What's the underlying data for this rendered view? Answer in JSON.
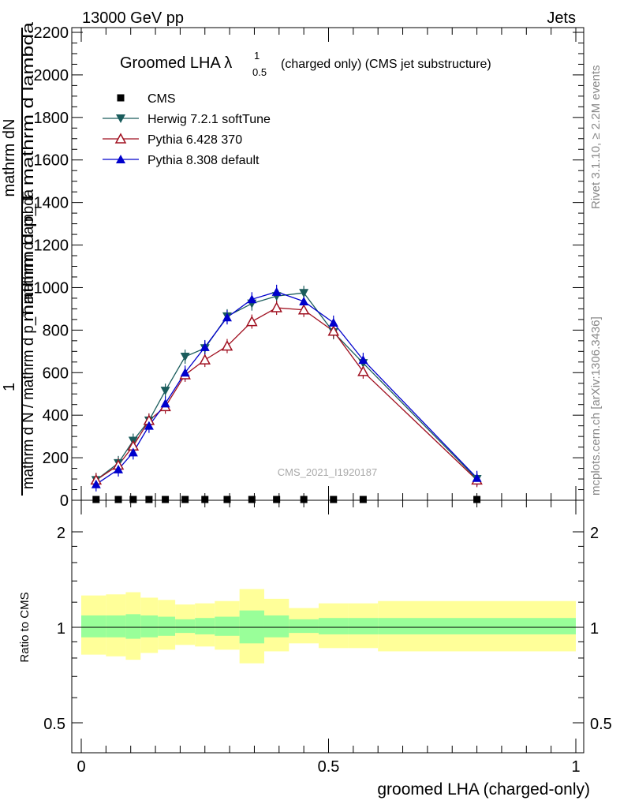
{
  "header": {
    "left": "13000 GeV pp",
    "right": "Jets"
  },
  "side_labels": {
    "top": "Rivet 3.1.10, ≥ 2.2M events",
    "bottom": "mcplots.cern.ch [arXiv:1306.3436]"
  },
  "watermark": "CMS_2021_I1920187",
  "colors": {
    "cms": "#000000",
    "herwig": "#1a5c5c",
    "pythia6": "#a01020",
    "pythia8": "#0000cc",
    "band_inner": "#99ff99",
    "band_outer": "#ffff99"
  },
  "chart_data": [
    {
      "type": "line",
      "title_main": "Groomed LHA",
      "title_symbol": "λ",
      "title_sup": "1",
      "title_sub": "0.5",
      "title_rest": "(charged only) (CMS jet substructure)",
      "ylabel_top": "mathrm dN",
      "ylabel_mid": "mathrm d p_T mathrm d lambda",
      "ylabel_one": "1",
      "ylabel_bottom": "mathrm d N / mathrm d p_T mathrm d lambda",
      "ylim": [
        0,
        2200
      ],
      "yticks": [
        0,
        200,
        400,
        600,
        800,
        1000,
        1200,
        1400,
        1600,
        1800,
        2000,
        2200
      ],
      "xlim": [
        0,
        1
      ],
      "x": [
        0.03,
        0.075,
        0.105,
        0.137,
        0.17,
        0.21,
        0.25,
        0.295,
        0.345,
        0.395,
        0.45,
        0.51,
        0.57,
        0.8
      ],
      "series": [
        {
          "name": "CMS",
          "marker": "square",
          "values": [
            0,
            0,
            0,
            0,
            0,
            0,
            0,
            0,
            0,
            0,
            0,
            0,
            0,
            0
          ]
        },
        {
          "name": "Herwig 7.2.1 softTune",
          "marker": "triangle-down",
          "values": [
            95,
            175,
            280,
            375,
            515,
            675,
            715,
            865,
            925,
            960,
            975,
            790,
            645,
            100
          ]
        },
        {
          "name": "Pythia 6.428 370",
          "marker": "triangle-open",
          "values": [
            95,
            165,
            255,
            375,
            440,
            590,
            660,
            725,
            840,
            905,
            895,
            795,
            605,
            95
          ]
        },
        {
          "name": "Pythia 8.308 default",
          "marker": "triangle-up",
          "values": [
            75,
            145,
            225,
            350,
            455,
            600,
            720,
            860,
            945,
            980,
            935,
            835,
            660,
            105
          ]
        }
      ]
    },
    {
      "type": "area",
      "ylabel": "Ratio to CMS",
      "xlabel": "groomed LHA (charged-only)",
      "ylim": [
        0.4,
        2.4
      ],
      "log_y": true,
      "yticks": [
        0.5,
        1,
        2
      ],
      "xticks": [
        0,
        0.5,
        1
      ],
      "bin_edges": [
        0,
        0.05,
        0.09,
        0.12,
        0.155,
        0.19,
        0.23,
        0.27,
        0.32,
        0.37,
        0.42,
        0.48,
        0.54,
        0.6,
        1.0
      ],
      "band_inner": [
        [
          0.93,
          1.09
        ],
        [
          0.93,
          1.09
        ],
        [
          0.92,
          1.1
        ],
        [
          0.93,
          1.09
        ],
        [
          0.94,
          1.08
        ],
        [
          0.96,
          1.06
        ],
        [
          0.95,
          1.07
        ],
        [
          0.94,
          1.08
        ],
        [
          0.89,
          1.13
        ],
        [
          0.93,
          1.09
        ],
        [
          0.96,
          1.06
        ],
        [
          0.95,
          1.07
        ],
        [
          0.95,
          1.07
        ],
        [
          0.95,
          1.07
        ],
        [
          0.95,
          1.07
        ]
      ],
      "band_outer": [
        [
          0.82,
          1.26
        ],
        [
          0.81,
          1.27
        ],
        [
          0.79,
          1.29
        ],
        [
          0.83,
          1.24
        ],
        [
          0.85,
          1.22
        ],
        [
          0.88,
          1.18
        ],
        [
          0.87,
          1.19
        ],
        [
          0.85,
          1.21
        ],
        [
          0.77,
          1.32
        ],
        [
          0.84,
          1.23
        ],
        [
          0.89,
          1.15
        ],
        [
          0.86,
          1.19
        ],
        [
          0.86,
          1.19
        ],
        [
          0.84,
          1.21
        ],
        [
          0.87,
          1.17
        ]
      ]
    }
  ]
}
